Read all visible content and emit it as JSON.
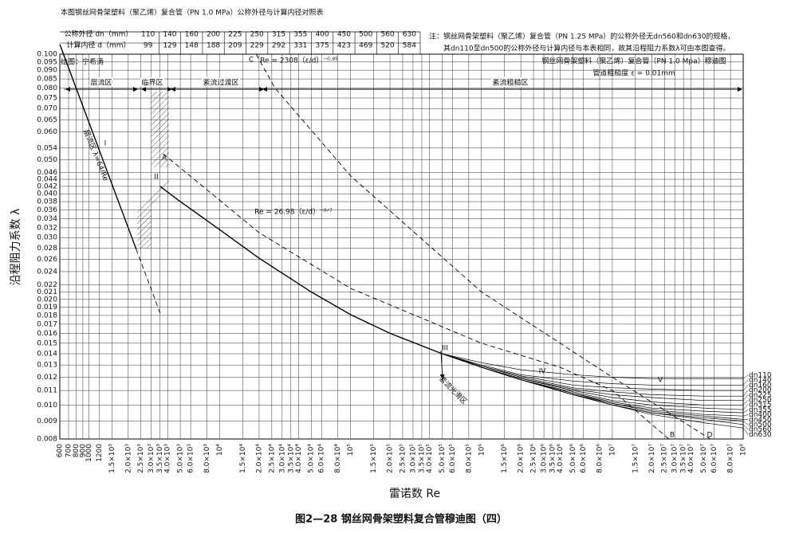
{
  "table": {
    "title": "本图钢丝网骨架塑料（聚乙烯）复合管（PN 1.0 MPa）公称外径与计算内径对照表",
    "rows": [
      [
        "公称外径 dn（mm）",
        110,
        140,
        160,
        200,
        225,
        250,
        315,
        355,
        400,
        450,
        500,
        560,
        630
      ],
      [
        "计算内径 d（mm）",
        99,
        129,
        148,
        188,
        209,
        229,
        292,
        331,
        375,
        423,
        469,
        520,
        584
      ]
    ]
  },
  "note": [
    "注：钢丝网骨架塑料（聚乙烯）复合管（PN 1.25 MPa）的公称外径无dn560和dn630的规格，",
    "其dn110至dn500的公称外径与计算内径与本表相同，故其沿程阻力系数λ可由本图查得。"
  ],
  "caption": "图2—28  钢丝网骨架塑料复合管穆迪图（四）",
  "chart_data": {
    "type": "line",
    "log_x": true,
    "log_y": true,
    "grid": true,
    "title": "钢丝网骨架塑料（聚乙烯）复合管（PN 1.0 Mpa）穆迪图",
    "subtitle": "管道粗糙度 ε = 0.01mm",
    "author": "绘图：宁希涛",
    "xlabel": "雷诺数 Re",
    "ylabel": "沿程阻力系数 λ",
    "xlim": [
      600,
      100000000
    ],
    "ylim": [
      0.008,
      0.1
    ],
    "xticks": [
      600,
      700,
      800,
      900,
      1000,
      1200,
      {
        "value": 1500,
        "label": "1.5×10³"
      },
      {
        "value": 2000,
        "label": "2.0×10³"
      },
      {
        "value": 2500,
        "label": "2.5×10³"
      },
      {
        "value": 3000,
        "label": "3.0×10³"
      },
      {
        "value": 3500,
        "label": "3.5×10³"
      },
      {
        "value": 4000,
        "label": "4.0×10³"
      },
      {
        "value": 5000,
        "label": "5.0×10³"
      },
      {
        "value": 6000,
        "label": "6.0×10³"
      },
      {
        "value": 8000,
        "label": "8.0×10³"
      },
      {
        "value": 10000,
        "label": "10⁴"
      },
      {
        "value": 15000,
        "label": "1.5×10⁴"
      },
      {
        "value": 20000,
        "label": "2.0×10⁴"
      },
      {
        "value": 25000,
        "label": "2.5×10⁴"
      },
      {
        "value": 30000,
        "label": "3.0×10⁴"
      },
      {
        "value": 35000,
        "label": "3.5×10⁴"
      },
      {
        "value": 40000,
        "label": "4.0×10⁴"
      },
      {
        "value": 50000,
        "label": "5.0×10⁴"
      },
      {
        "value": 60000,
        "label": "6.0×10⁴"
      },
      {
        "value": 80000,
        "label": "8.0×10⁴"
      },
      {
        "value": 100000,
        "label": "10⁵"
      },
      {
        "value": 150000,
        "label": "1.5×10⁵"
      },
      {
        "value": 200000,
        "label": "2.0×10⁵"
      },
      {
        "value": 250000,
        "label": "2.5×10⁵"
      },
      {
        "value": 300000,
        "label": "3.0×10⁵"
      },
      {
        "value": 350000,
        "label": "3.5×10⁵"
      },
      {
        "value": 400000,
        "label": "4.0×10⁵"
      },
      {
        "value": 500000,
        "label": "5.0×10⁵"
      },
      {
        "value": 600000,
        "label": "6.0×10⁵"
      },
      {
        "value": 800000,
        "label": "8.0×10⁵"
      },
      {
        "value": 1000000,
        "label": "10⁶"
      },
      {
        "value": 1500000,
        "label": "1.5×10⁶"
      },
      {
        "value": 2000000,
        "label": "2.0×10⁶"
      },
      {
        "value": 2500000,
        "label": "2.5×10⁶"
      },
      {
        "value": 3000000,
        "label": "3.0×10⁶"
      },
      {
        "value": 3500000,
        "label": "3.5×10⁶"
      },
      {
        "value": 4000000,
        "label": "4.0×10⁶"
      },
      {
        "value": 5000000,
        "label": "5.0×10⁶"
      },
      {
        "value": 6000000,
        "label": "6.0×10⁶"
      },
      {
        "value": 8000000,
        "label": "8.0×10⁶"
      },
      {
        "value": 10000000,
        "label": "10⁷"
      },
      {
        "value": 15000000,
        "label": "1.5×10⁷"
      },
      {
        "value": 20000000,
        "label": "2.0×10⁷"
      },
      {
        "value": 25000000,
        "label": "2.5×10⁷"
      },
      {
        "value": 30000000,
        "label": "3.0×10⁷"
      },
      {
        "value": 35000000,
        "label": "3.5×10⁷"
      },
      {
        "value": 40000000,
        "label": "4.0×10⁷"
      },
      {
        "value": 50000000,
        "label": "5.0×10⁷"
      },
      {
        "value": 60000000,
        "label": "6.0×10⁷"
      },
      {
        "value": 80000000,
        "label": "8.0×10⁷"
      },
      {
        "value": 100000000,
        "label": "10⁸"
      }
    ],
    "yticks": [
      0.008,
      0.009,
      {
        "value": 0.01,
        "label": "0.010"
      },
      0.011,
      0.012,
      0.013,
      0.014,
      0.015,
      0.016,
      0.017,
      0.018,
      0.019,
      {
        "value": 0.02,
        "label": "0.020"
      },
      0.021,
      0.022,
      0.024,
      0.026,
      0.028,
      {
        "value": 0.03,
        "label": "0.030"
      },
      0.032,
      0.034,
      0.036,
      0.038,
      {
        "value": 0.04,
        "label": "0.040"
      },
      0.042,
      0.044,
      0.046,
      {
        "value": 0.05,
        "label": "0.050"
      },
      0.054,
      {
        "value": 0.06,
        "label": "0.060"
      },
      0.065,
      {
        "value": 0.07,
        "label": "0.070"
      },
      0.075,
      {
        "value": 0.08,
        "label": "0.080"
      },
      0.085,
      {
        "value": 0.09,
        "label": "0.090"
      },
      0.095,
      {
        "value": 0.1,
        "label": "0.100"
      }
    ],
    "series": [
      {
        "color": "#000000",
        "dashed": false,
        "x": [
          600,
          2300
        ],
        "values": [
          0.1067,
          0.0278
        ]
      },
      {
        "color": "#000000",
        "dashed": true,
        "x": [
          2300,
          3500
        ],
        "values": [
          0.0278,
          0.0183
        ]
      },
      {
        "color": "#000000",
        "dashed": false,
        "x": [
          3500,
          5000,
          10000,
          20000,
          50000,
          100000,
          200000,
          500000
        ],
        "values": [
          0.042,
          0.038,
          0.0316,
          0.0262,
          0.021,
          0.0181,
          0.016,
          0.014
        ]
      },
      {
        "color": "#000000",
        "dashed": true,
        "x": [
          3700,
          20000,
          100000,
          1000000,
          4000000,
          10000000,
          27000000
        ],
        "values": [
          0.052,
          0.031,
          0.0215,
          0.015,
          0.0128,
          0.011,
          0.008
        ]
      },
      {
        "color": "#000000",
        "dashed": true,
        "x": [
          19000,
          26500,
          100000,
          1000000,
          10000000,
          56000000
        ],
        "values": [
          0.1,
          0.08,
          0.045,
          0.021,
          0.012,
          0.008
        ]
      },
      {
        "name": "dn110",
        "color": "#000000",
        "dashed": false,
        "x": [
          500000,
          1000000,
          2000000,
          5000000,
          10000000,
          20000000,
          50000000,
          100000000
        ],
        "values": [
          0.014,
          0.0132,
          0.0126,
          0.0122,
          0.012,
          0.0119,
          0.0119,
          0.0119
        ]
      },
      {
        "name": "dn140",
        "color": "#000000",
        "dashed": false,
        "x": [
          500000,
          1000000,
          2000000,
          5000000,
          10000000,
          20000000,
          50000000,
          100000000
        ],
        "values": [
          0.014,
          0.013,
          0.0122,
          0.0117,
          0.0115,
          0.0114,
          0.0114,
          0.0114
        ]
      },
      {
        "name": "dn160",
        "color": "#000000",
        "dashed": false,
        "x": [
          500000,
          1000000,
          2000000,
          5000000,
          10000000,
          20000000,
          50000000,
          100000000
        ],
        "values": [
          0.014,
          0.0129,
          0.0121,
          0.0114,
          0.0112,
          0.0111,
          0.011,
          0.011
        ]
      },
      {
        "name": "dn200",
        "color": "#000000",
        "dashed": false,
        "x": [
          500000,
          1000000,
          2000000,
          5000000,
          10000000,
          20000000,
          50000000,
          100000000
        ],
        "values": [
          0.014,
          0.0129,
          0.012,
          0.0112,
          0.0109,
          0.0107,
          0.0106,
          0.0106
        ]
      },
      {
        "name": "dn225",
        "color": "#000000",
        "dashed": false,
        "x": [
          500000,
          1000000,
          2000000,
          5000000,
          10000000,
          20000000,
          50000000,
          100000000
        ],
        "values": [
          0.014,
          0.0128,
          0.0119,
          0.0111,
          0.0107,
          0.0105,
          0.0103,
          0.0103
        ]
      },
      {
        "name": "dn250",
        "color": "#000000",
        "dashed": false,
        "x": [
          500000,
          1000000,
          2000000,
          5000000,
          10000000,
          20000000,
          50000000,
          100000000
        ],
        "values": [
          0.014,
          0.0128,
          0.0119,
          0.011,
          0.0105,
          0.0102,
          0.01,
          0.01
        ]
      },
      {
        "name": "dn315",
        "color": "#000000",
        "dashed": false,
        "x": [
          500000,
          1000000,
          2000000,
          5000000,
          10000000,
          20000000,
          50000000,
          100000000
        ],
        "values": [
          0.014,
          0.0128,
          0.0118,
          0.0109,
          0.0103,
          0.01,
          0.0098,
          0.0097
        ]
      },
      {
        "name": "dn355",
        "color": "#000000",
        "dashed": false,
        "x": [
          500000,
          1000000,
          2000000,
          5000000,
          10000000,
          20000000,
          50000000,
          100000000
        ],
        "values": [
          0.014,
          0.0128,
          0.0118,
          0.0108,
          0.0102,
          0.0098,
          0.0096,
          0.0095
        ]
      },
      {
        "name": "dn400",
        "color": "#000000",
        "dashed": false,
        "x": [
          500000,
          1000000,
          2000000,
          5000000,
          10000000,
          20000000,
          50000000,
          100000000
        ],
        "values": [
          0.014,
          0.0128,
          0.0118,
          0.0108,
          0.0101,
          0.0097,
          0.0094,
          0.0093
        ]
      },
      {
        "name": "dn450",
        "color": "#000000",
        "dashed": false,
        "x": [
          500000,
          1000000,
          2000000,
          5000000,
          10000000,
          20000000,
          50000000,
          100000000
        ],
        "values": [
          0.014,
          0.0128,
          0.0118,
          0.0107,
          0.0101,
          0.0096,
          0.0093,
          0.0091
        ]
      },
      {
        "name": "dn500",
        "color": "#000000",
        "dashed": false,
        "x": [
          500000,
          1000000,
          2000000,
          5000000,
          10000000,
          20000000,
          50000000,
          100000000
        ],
        "values": [
          0.014,
          0.0128,
          0.0118,
          0.0107,
          0.01,
          0.0095,
          0.0092,
          0.009
        ]
      },
      {
        "name": "dn560",
        "color": "#000000",
        "dashed": false,
        "x": [
          500000,
          1000000,
          2000000,
          5000000,
          10000000,
          20000000,
          50000000,
          100000000
        ],
        "values": [
          0.014,
          0.0128,
          0.0118,
          0.0107,
          0.01,
          0.0095,
          0.0091,
          0.0088
        ]
      },
      {
        "name": "dn630",
        "color": "#000000",
        "dashed": false,
        "x": [
          500000,
          1000000,
          2000000,
          5000000,
          10000000,
          20000000,
          50000000,
          100000000
        ],
        "values": [
          0.014,
          0.0128,
          0.0118,
          0.0107,
          0.01,
          0.0094,
          0.0089,
          0.0086
        ]
      }
    ],
    "annotations": [
      "I",
      "II",
      "III",
      "IV",
      "V",
      "A",
      "B",
      "C",
      "D",
      "层流区",
      "临界区",
      "紊流过渡区",
      "紊流粗糙区",
      "紊流光滑区",
      "Re = 2308（ε/d）⁻⁰·⁸⁵",
      "Re = 26.98（ε/d）⁻⁸ᐟ⁷",
      "层流区 λ=64/Re"
    ]
  }
}
